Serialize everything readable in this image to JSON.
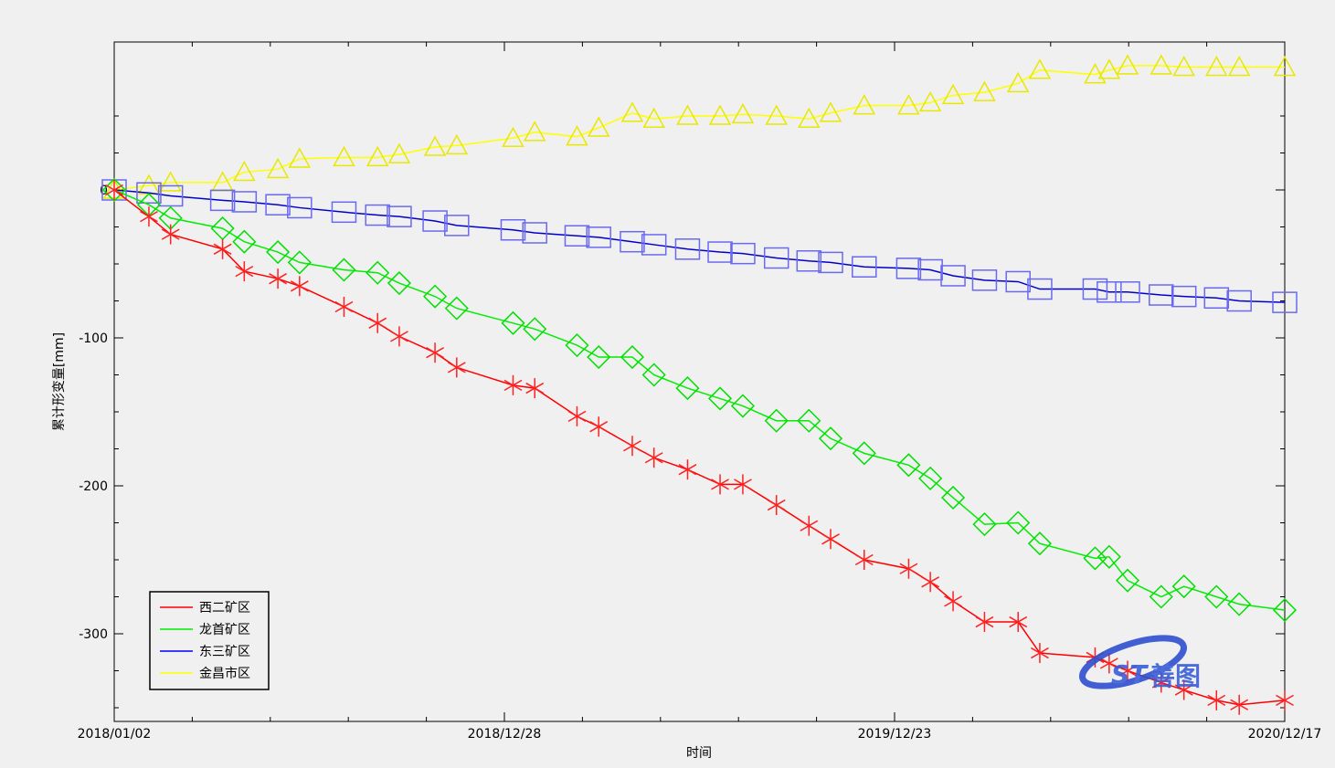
{
  "chart_data": {
    "type": "line",
    "xlabel": "时间",
    "ylabel": "累计形变量[mm]",
    "xlim": [
      "2018-01-02",
      "2020-12-17"
    ],
    "ylim": [
      -358,
      100
    ],
    "x_ticks": [
      "2018/01/02",
      "2018/12/28",
      "2019/12/23",
      "2020/12/17"
    ],
    "y_ticks": [
      0,
      -100,
      -200,
      -300
    ],
    "y_tick_labels": [
      "0",
      "-100",
      "-200",
      "-300"
    ],
    "grid": false,
    "legend_position": "bottom-left",
    "watermark": "善图",
    "x": [
      "2018-01-02",
      "2018-02-03",
      "2018-02-23",
      "2018-04-12",
      "2018-05-02",
      "2018-06-02",
      "2018-06-22",
      "2018-08-02",
      "2018-09-02",
      "2018-09-22",
      "2018-10-25",
      "2018-11-14",
      "2019-01-05",
      "2019-01-25",
      "2019-03-05",
      "2019-03-25",
      "2019-04-25",
      "2019-05-15",
      "2019-06-15",
      "2019-07-15",
      "2019-08-05",
      "2019-09-05",
      "2019-10-05",
      "2019-10-25",
      "2019-11-25",
      "2020-01-05",
      "2020-01-25",
      "2020-02-15",
      "2020-03-15",
      "2020-04-15",
      "2020-05-05",
      "2020-06-25",
      "2020-07-08",
      "2020-07-25",
      "2020-08-25",
      "2020-09-15",
      "2020-10-15",
      "2020-11-05",
      "2020-12-17"
    ],
    "series": [
      {
        "name": "西二矿区",
        "color": "#ff0000",
        "marker": "asterisk",
        "values": [
          0,
          -18,
          -30,
          -40,
          -55,
          -60,
          -65,
          -79,
          -90,
          -99,
          -110,
          -120,
          -132,
          -134,
          -153,
          -160,
          -173,
          -181,
          -189,
          -199,
          -199,
          -213,
          -227,
          -236,
          -250,
          -256,
          -265,
          -278,
          -292,
          -292,
          -313,
          -316,
          -320,
          -325,
          -333,
          -338,
          -345,
          -348,
          -345
        ]
      },
      {
        "name": "龙首矿区",
        "color": "#00ee00",
        "marker": "diamond",
        "values": [
          0,
          -10,
          -19,
          -26,
          -35,
          -42,
          -49,
          -54,
          -56,
          -63,
          -72,
          -80,
          -90,
          -94,
          -105,
          -113,
          -113,
          -125,
          -134,
          -141,
          -146,
          -156,
          -156,
          -168,
          -178,
          -186,
          -195,
          -208,
          -226,
          -225,
          -239,
          -249,
          -248,
          -264,
          -275,
          -268,
          -275,
          -280,
          -284
        ]
      },
      {
        "name": "东三矿区",
        "color": "#0000ff",
        "marker": "square",
        "values": [
          0,
          -2,
          -4,
          -7,
          -8,
          -10,
          -12,
          -15,
          -17,
          -18,
          -21,
          -24,
          -27,
          -29,
          -31,
          -32,
          -35,
          -37,
          -40,
          -42,
          -43,
          -46,
          -48,
          -49,
          -52,
          -53,
          -54,
          -58,
          -61,
          -62,
          -67,
          -67,
          -69,
          -69,
          -71,
          -72,
          -73,
          -75,
          -76
        ]
      },
      {
        "name": "金昌市区",
        "color": "#ffff00",
        "marker": "triangle",
        "values": [
          0,
          3,
          5,
          5,
          12,
          14,
          21,
          22,
          22,
          24,
          29,
          30,
          35,
          39,
          36,
          42,
          52,
          48,
          50,
          50,
          51,
          50,
          48,
          52,
          57,
          57,
          59,
          64,
          66,
          72,
          81,
          78,
          81,
          84,
          84,
          83,
          83,
          83,
          83
        ]
      }
    ]
  }
}
